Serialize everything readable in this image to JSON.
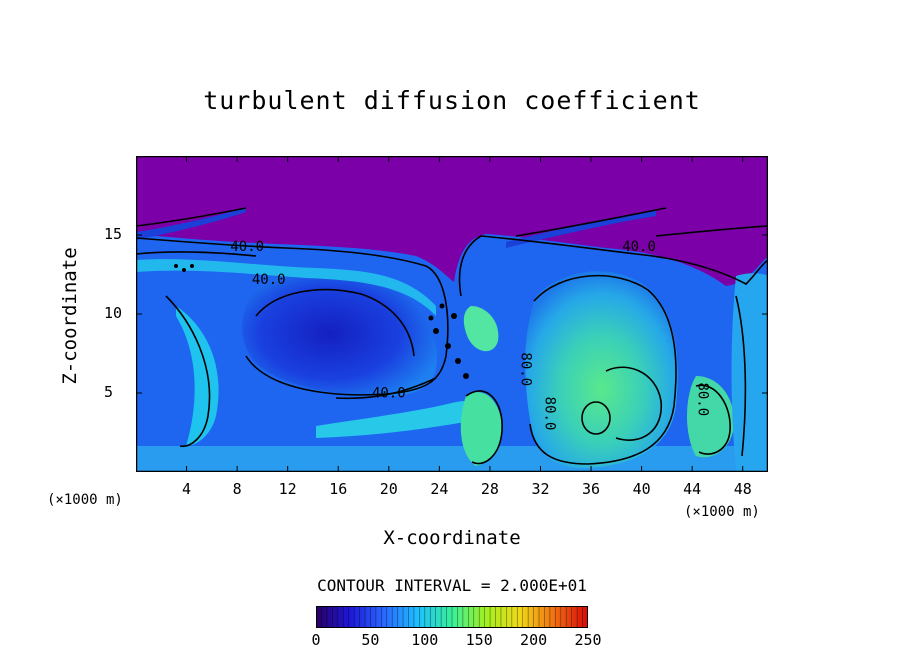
{
  "chart_data": {
    "type": "heatmap",
    "title": "turbulent diffusion coefficient",
    "xlabel": "X-coordinate",
    "ylabel": "Z-coordinate",
    "x_unit": "(×1000 m)",
    "y_unit": "(×1000 m)",
    "xlim": [
      0,
      50
    ],
    "ylim": [
      0,
      20
    ],
    "x_ticks": [
      4,
      8,
      12,
      16,
      20,
      24,
      28,
      32,
      36,
      40,
      44,
      48
    ],
    "y_ticks": [
      5,
      10,
      15
    ],
    "contour_interval_text": "CONTOUR INTERVAL = 2.000E+01",
    "contour_labels": [
      {
        "text": "40.0",
        "x": 8.8,
        "z": 14.0
      },
      {
        "text": "40.0",
        "x": 10.5,
        "z": 11.9
      },
      {
        "text": "40.0",
        "x": 20.0,
        "z": 4.7
      },
      {
        "text": "40.0",
        "x": 39.8,
        "z": 14.0
      },
      {
        "text": "80.0",
        "x": 30.5,
        "z": 6.5
      },
      {
        "text": "80.0",
        "x": 32.4,
        "z": 3.7
      },
      {
        "text": "80.0",
        "x": 44.5,
        "z": 4.6
      }
    ],
    "colorbar": {
      "range": [
        0,
        250
      ],
      "ticks": [
        "0",
        "50",
        "100",
        "150",
        "200",
        "250"
      ],
      "colors": [
        "#2a0064",
        "#1c18d8",
        "#2a68ff",
        "#1ec0ff",
        "#38f09a",
        "#a2f020",
        "#f0d818",
        "#f07012",
        "#d80808"
      ]
    },
    "colors": {
      "background": "#7b00a8",
      "field_low": "#1420c8",
      "field_mid": "#1e6ef0",
      "field_cyan": "#22c2ee",
      "field_green": "#4ce890"
    }
  }
}
